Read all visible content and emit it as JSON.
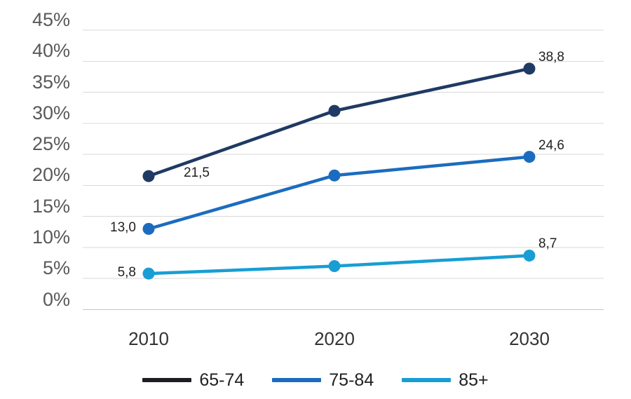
{
  "chart_data": {
    "type": "line",
    "title": "",
    "x_categories": [
      "2010",
      "2020",
      "2030"
    ],
    "y_ticks": [
      "45%",
      "40%",
      "35%",
      "30%",
      "25%",
      "20%",
      "15%",
      "10%",
      "5%",
      "0%"
    ],
    "ylim": [
      0,
      45
    ],
    "grid": "horizontal-only",
    "legend_position": "bottom-center",
    "decimal_style": "comma",
    "series": [
      {
        "name": "65-74",
        "color": "#1f3a63",
        "legend_swatch_color": "#1e1e22",
        "values": [
          21.5,
          32.0,
          38.8
        ],
        "data_labels": [
          "21,5",
          null,
          "38,8"
        ]
      },
      {
        "name": "75-84",
        "color": "#1b6cbe",
        "legend_swatch_color": "#1b6cbe",
        "values": [
          13.0,
          21.6,
          24.6
        ],
        "data_labels": [
          "13,0",
          null,
          "24,6"
        ]
      },
      {
        "name": "85+",
        "color": "#189ed4",
        "legend_swatch_color": "#189ed4",
        "values": [
          5.8,
          7.0,
          8.7
        ],
        "data_labels": [
          "5,8",
          null,
          "8,7"
        ]
      }
    ]
  },
  "colors": {
    "background": "#ffffff",
    "gridline": "#d9d9d9",
    "baseline": "#c6c6c6",
    "y_tick_text": "#595959",
    "x_tick_text": "#333333",
    "data_label_text": "#1f1f1f",
    "legend_text": "#212121"
  }
}
